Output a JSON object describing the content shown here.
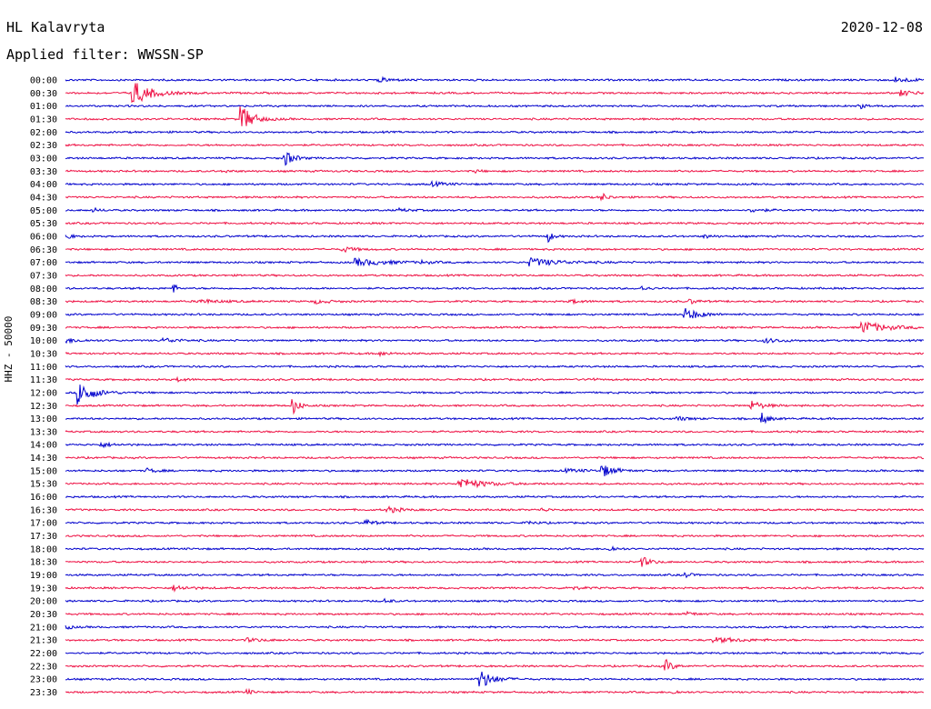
{
  "header": {
    "station": "HL Kalavryta",
    "date": "2020-12-08",
    "filter": "Applied filter: WWSSN-SP"
  },
  "colors": {
    "even": "#0000cc",
    "odd": "#ee1144"
  },
  "chart_data": {
    "type": "line",
    "ylabel": "HHZ - 50000",
    "row_labels": [
      "00:00",
      "00:30",
      "01:00",
      "01:30",
      "02:00",
      "02:30",
      "03:00",
      "03:30",
      "04:00",
      "04:30",
      "05:00",
      "05:30",
      "06:00",
      "06:30",
      "07:00",
      "07:30",
      "08:00",
      "08:30",
      "09:00",
      "09:30",
      "10:00",
      "10:30",
      "11:00",
      "11:30",
      "12:00",
      "12:30",
      "13:00",
      "13:30",
      "14:00",
      "14:30",
      "15:00",
      "15:30",
      "16:00",
      "16:30",
      "17:00",
      "17:30",
      "18:00",
      "18:30",
      "19:00",
      "19:30",
      "20:00",
      "20:30",
      "21:00",
      "21:30",
      "22:00",
      "22:30",
      "23:00",
      "23:30"
    ],
    "row_minutes": 30,
    "events": [
      {
        "row": 0,
        "minute": 11.0,
        "amp": 0.3,
        "dur": 1.0
      },
      {
        "row": 0,
        "minute": 29.0,
        "amp": 0.4,
        "dur": 1.2
      },
      {
        "row": 1,
        "minute": 2.4,
        "amp": 1.8,
        "dur": 1.2
      },
      {
        "row": 1,
        "minute": 29.2,
        "amp": 0.4,
        "dur": 1.0
      },
      {
        "row": 2,
        "minute": 27.8,
        "amp": 0.3,
        "dur": 0.5
      },
      {
        "row": 3,
        "minute": 6.2,
        "amp": 1.9,
        "dur": 0.8
      },
      {
        "row": 6,
        "minute": 7.7,
        "amp": 1.1,
        "dur": 0.6
      },
      {
        "row": 7,
        "minute": 5.6,
        "amp": 0.2,
        "dur": 0.4
      },
      {
        "row": 7,
        "minute": 14.4,
        "amp": 0.2,
        "dur": 0.3
      },
      {
        "row": 8,
        "minute": 12.9,
        "amp": 0.3,
        "dur": 0.8
      },
      {
        "row": 9,
        "minute": 18.8,
        "amp": 0.5,
        "dur": 0.4
      },
      {
        "row": 10,
        "minute": 1.0,
        "amp": 0.25,
        "dur": 0.5
      },
      {
        "row": 10,
        "minute": 11.7,
        "amp": 0.2,
        "dur": 0.8
      },
      {
        "row": 10,
        "minute": 24.0,
        "amp": 0.3,
        "dur": 0.8
      },
      {
        "row": 12,
        "minute": 0.0,
        "amp": 0.9,
        "dur": 0.3
      },
      {
        "row": 12,
        "minute": 16.9,
        "amp": 0.8,
        "dur": 0.3
      },
      {
        "row": 12,
        "minute": 22.4,
        "amp": 0.2,
        "dur": 0.6
      },
      {
        "row": 13,
        "minute": 9.7,
        "amp": 0.4,
        "dur": 0.8
      },
      {
        "row": 14,
        "minute": 10.2,
        "amp": 0.5,
        "dur": 2.2
      },
      {
        "row": 14,
        "minute": 12.5,
        "amp": 0.2,
        "dur": 0.5
      },
      {
        "row": 14,
        "minute": 16.3,
        "amp": 0.6,
        "dur": 2.0
      },
      {
        "row": 16,
        "minute": 3.8,
        "amp": 0.7,
        "dur": 0.2
      },
      {
        "row": 16,
        "minute": 20.2,
        "amp": 0.3,
        "dur": 0.4
      },
      {
        "row": 17,
        "minute": 4.7,
        "amp": 0.3,
        "dur": 1.4
      },
      {
        "row": 17,
        "minute": 8.8,
        "amp": 0.25,
        "dur": 1.0
      },
      {
        "row": 17,
        "minute": 17.7,
        "amp": 0.25,
        "dur": 0.8
      },
      {
        "row": 17,
        "minute": 21.9,
        "amp": 0.3,
        "dur": 0.5
      },
      {
        "row": 18,
        "minute": 21.7,
        "amp": 0.9,
        "dur": 1.0
      },
      {
        "row": 19,
        "minute": 27.9,
        "amp": 0.9,
        "dur": 1.6
      },
      {
        "row": 20,
        "minute": 0.0,
        "amp": 0.35,
        "dur": 1.0
      },
      {
        "row": 20,
        "minute": 3.5,
        "amp": 0.3,
        "dur": 1.0
      },
      {
        "row": 20,
        "minute": 24.5,
        "amp": 0.3,
        "dur": 1.2
      },
      {
        "row": 21,
        "minute": 11.0,
        "amp": 0.25,
        "dur": 0.8
      },
      {
        "row": 23,
        "minute": 4.0,
        "amp": 0.25,
        "dur": 0.5
      },
      {
        "row": 23,
        "minute": 18.3,
        "amp": 0.25,
        "dur": 0.4
      },
      {
        "row": 24,
        "minute": 0.5,
        "amp": 1.8,
        "dur": 1.0
      },
      {
        "row": 25,
        "minute": 8.0,
        "amp": 1.2,
        "dur": 0.4
      },
      {
        "row": 25,
        "minute": 24.0,
        "amp": 0.7,
        "dur": 0.8
      },
      {
        "row": 26,
        "minute": 21.4,
        "amp": 0.3,
        "dur": 0.8
      },
      {
        "row": 26,
        "minute": 24.4,
        "amp": 0.9,
        "dur": 0.4
      },
      {
        "row": 28,
        "minute": 1.3,
        "amp": 0.3,
        "dur": 0.8
      },
      {
        "row": 30,
        "minute": 2.9,
        "amp": 0.3,
        "dur": 0.6
      },
      {
        "row": 30,
        "minute": 17.5,
        "amp": 0.2,
        "dur": 1.6
      },
      {
        "row": 30,
        "minute": 18.8,
        "amp": 0.9,
        "dur": 0.8
      },
      {
        "row": 31,
        "minute": 13.8,
        "amp": 0.9,
        "dur": 1.6
      },
      {
        "row": 33,
        "minute": 11.3,
        "amp": 0.45,
        "dur": 0.8
      },
      {
        "row": 33,
        "minute": 16.7,
        "amp": 0.2,
        "dur": 0.5
      },
      {
        "row": 34,
        "minute": 10.5,
        "amp": 0.45,
        "dur": 0.6
      },
      {
        "row": 34,
        "minute": 16.2,
        "amp": 0.3,
        "dur": 0.4
      },
      {
        "row": 36,
        "minute": 19.1,
        "amp": 0.4,
        "dur": 0.4
      },
      {
        "row": 37,
        "minute": 20.2,
        "amp": 0.7,
        "dur": 0.6
      },
      {
        "row": 38,
        "minute": 21.7,
        "amp": 0.35,
        "dur": 0.4
      },
      {
        "row": 39,
        "minute": 3.8,
        "amp": 0.4,
        "dur": 1.0
      },
      {
        "row": 39,
        "minute": 17.6,
        "amp": 0.25,
        "dur": 0.8
      },
      {
        "row": 40,
        "minute": 11.2,
        "amp": 0.3,
        "dur": 0.4
      },
      {
        "row": 41,
        "minute": 21.8,
        "amp": 0.3,
        "dur": 0.5
      },
      {
        "row": 42,
        "minute": 0.0,
        "amp": 0.4,
        "dur": 0.4
      },
      {
        "row": 43,
        "minute": 6.4,
        "amp": 0.25,
        "dur": 1.2
      },
      {
        "row": 43,
        "minute": 22.7,
        "amp": 0.35,
        "dur": 2.0
      },
      {
        "row": 45,
        "minute": 21.0,
        "amp": 0.9,
        "dur": 0.5
      },
      {
        "row": 46,
        "minute": 14.5,
        "amp": 1.5,
        "dur": 0.9
      },
      {
        "row": 47,
        "minute": 6.4,
        "amp": 0.35,
        "dur": 0.3
      },
      {
        "row": 47,
        "minute": 21.3,
        "amp": 0.3,
        "dur": 0.3
      }
    ]
  }
}
